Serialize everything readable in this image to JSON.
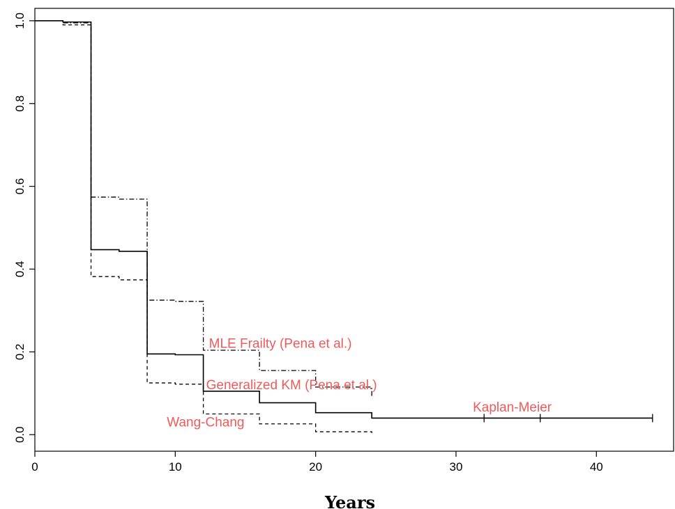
{
  "chart_data": {
    "type": "line",
    "title": "",
    "xlabel": "Years",
    "ylabel": "",
    "xlim": [
      0,
      45.5
    ],
    "ylim": [
      -0.04,
      1.03
    ],
    "x_ticks": [
      0,
      10,
      20,
      30,
      40
    ],
    "y_ticks": [
      0.0,
      0.2,
      0.4,
      0.6,
      0.8,
      1.0
    ],
    "x_tick_labels": [
      "0",
      "10",
      "20",
      "30",
      "40"
    ],
    "y_tick_labels": [
      "0.0",
      "0.2",
      "0.4",
      "0.6",
      "0.8",
      "1.0"
    ],
    "grid": false,
    "step": true,
    "series": [
      {
        "name": "Kaplan-Meier",
        "style": "solid",
        "color": "#000000",
        "x": [
          0,
          2,
          4,
          6,
          8,
          10,
          12,
          16,
          20,
          24,
          44
        ],
        "y": [
          1.0,
          0.997,
          0.447,
          0.443,
          0.195,
          0.193,
          0.105,
          0.077,
          0.053,
          0.04,
          0.04
        ],
        "censor_marks": [
          32,
          36,
          44
        ]
      },
      {
        "name": "MLE Frailty (Pena et al.)",
        "style": "dotdash",
        "color": "#000000",
        "x": [
          0,
          2,
          4,
          6,
          8,
          10,
          12,
          16,
          20,
          24
        ],
        "y": [
          1.0,
          0.995,
          0.574,
          0.569,
          0.325,
          0.322,
          0.204,
          0.155,
          0.115,
          0.09
        ]
      },
      {
        "name": "Wang-Chang",
        "style": "dashed",
        "color": "#000000",
        "x": [
          0,
          2,
          4,
          6,
          8,
          10,
          12,
          16,
          20,
          24
        ],
        "y": [
          1.0,
          0.99,
          0.382,
          0.374,
          0.125,
          0.122,
          0.05,
          0.026,
          0.007,
          0.004
        ]
      }
    ],
    "annotations": [
      {
        "text": "MLE Frailty (Pena et al.)",
        "x": 12.4,
        "y": 0.21
      },
      {
        "text": "Generalized KM (Pena et al.)",
        "x": 12.2,
        "y": 0.11
      },
      {
        "text": "Wang-Chang",
        "x": 9.4,
        "y": 0.02
      },
      {
        "text": "Kaplan-Meier",
        "x": 31.2,
        "y": 0.056
      }
    ],
    "annotation_color": "#f05a5a"
  }
}
